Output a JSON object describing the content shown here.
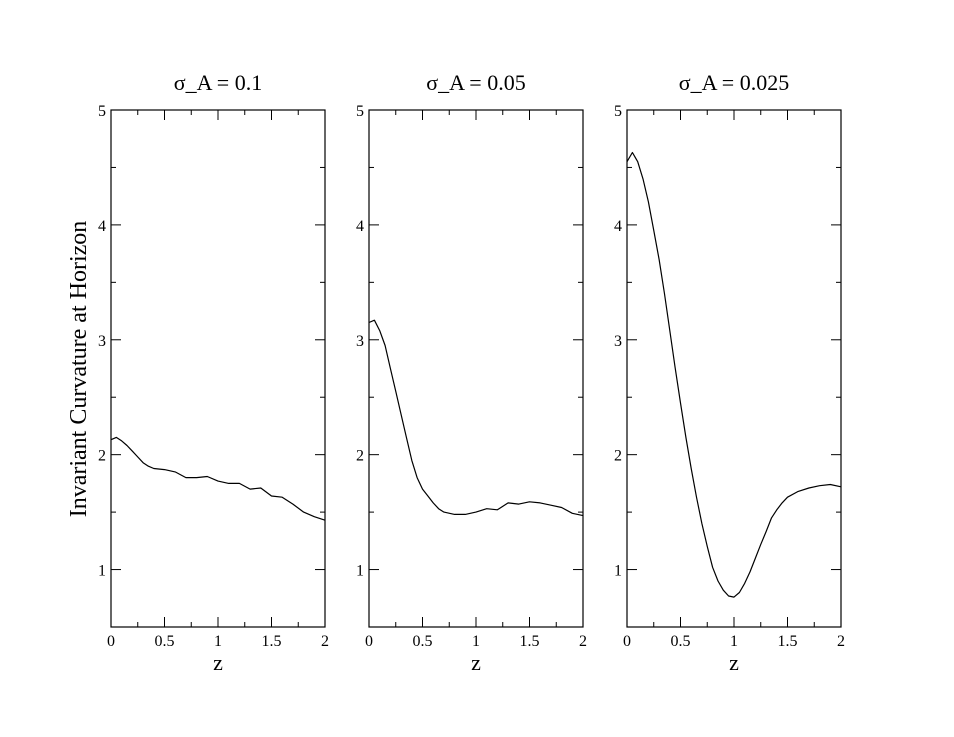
{
  "figure": {
    "ylabel": "Invariant Curvature at Horizon"
  },
  "chart_data": [
    {
      "type": "line",
      "title": "σ_A = 0.1",
      "xlabel": "z",
      "ylabel": "",
      "xlim": [
        0,
        2
      ],
      "ylim": [
        0.5,
        5
      ],
      "xticks": [
        0,
        0.5,
        1,
        1.5,
        2
      ],
      "xtick_labels": [
        "0",
        "0.5",
        "1",
        "1.5",
        "2"
      ],
      "yticks": [
        1,
        2,
        3,
        4,
        5
      ],
      "ytick_labels": [
        "1",
        "2",
        "3",
        "4",
        "5"
      ],
      "grid": false,
      "color": "#000000",
      "series": [
        {
          "x": [
            0,
            0.05,
            0.1,
            0.15,
            0.2,
            0.25,
            0.3,
            0.35,
            0.4,
            0.5,
            0.6,
            0.7,
            0.8,
            0.9,
            1.0,
            1.1,
            1.2,
            1.3,
            1.4,
            1.5,
            1.6,
            1.7,
            1.8,
            1.9,
            2.0
          ],
          "y": [
            2.13,
            2.15,
            2.12,
            2.08,
            2.03,
            1.98,
            1.93,
            1.9,
            1.88,
            1.87,
            1.85,
            1.8,
            1.8,
            1.81,
            1.77,
            1.75,
            1.75,
            1.7,
            1.71,
            1.64,
            1.63,
            1.57,
            1.5,
            1.46,
            1.43
          ]
        }
      ]
    },
    {
      "type": "line",
      "title": "σ_A = 0.05",
      "xlabel": "z",
      "ylabel": "",
      "xlim": [
        0,
        2
      ],
      "ylim": [
        0.5,
        5
      ],
      "xticks": [
        0,
        0.5,
        1,
        1.5,
        2
      ],
      "xtick_labels": [
        "0",
        "0.5",
        "1",
        "1.5",
        "2"
      ],
      "yticks": [
        1,
        2,
        3,
        4,
        5
      ],
      "ytick_labels": [
        "1",
        "2",
        "3",
        "4",
        "5"
      ],
      "grid": false,
      "color": "#000000",
      "series": [
        {
          "x": [
            0,
            0.05,
            0.1,
            0.15,
            0.2,
            0.25,
            0.3,
            0.35,
            0.4,
            0.45,
            0.5,
            0.55,
            0.6,
            0.65,
            0.7,
            0.8,
            0.9,
            1.0,
            1.1,
            1.2,
            1.3,
            1.4,
            1.5,
            1.6,
            1.7,
            1.8,
            1.9,
            2.0
          ],
          "y": [
            3.15,
            3.17,
            3.08,
            2.95,
            2.75,
            2.55,
            2.35,
            2.15,
            1.95,
            1.8,
            1.7,
            1.64,
            1.58,
            1.53,
            1.5,
            1.48,
            1.48,
            1.5,
            1.53,
            1.52,
            1.58,
            1.57,
            1.59,
            1.58,
            1.56,
            1.54,
            1.49,
            1.47
          ]
        }
      ]
    },
    {
      "type": "line",
      "title": "σ_A = 0.025",
      "xlabel": "z",
      "ylabel": "",
      "xlim": [
        0,
        2
      ],
      "ylim": [
        0.5,
        5
      ],
      "xticks": [
        0,
        0.5,
        1,
        1.5,
        2
      ],
      "xtick_labels": [
        "0",
        "0.5",
        "1",
        "1.5",
        "2"
      ],
      "yticks": [
        1,
        2,
        3,
        4,
        5
      ],
      "ytick_labels": [
        "1",
        "2",
        "3",
        "4",
        "5"
      ],
      "grid": false,
      "color": "#000000",
      "series": [
        {
          "x": [
            0,
            0.05,
            0.1,
            0.15,
            0.2,
            0.25,
            0.3,
            0.35,
            0.4,
            0.45,
            0.5,
            0.55,
            0.6,
            0.65,
            0.7,
            0.75,
            0.8,
            0.85,
            0.9,
            0.95,
            1.0,
            1.05,
            1.1,
            1.15,
            1.2,
            1.25,
            1.3,
            1.35,
            1.4,
            1.45,
            1.5,
            1.6,
            1.7,
            1.8,
            1.9,
            2.0
          ],
          "y": [
            4.55,
            4.63,
            4.55,
            4.4,
            4.2,
            3.95,
            3.7,
            3.4,
            3.08,
            2.76,
            2.45,
            2.15,
            1.88,
            1.63,
            1.4,
            1.2,
            1.02,
            0.9,
            0.82,
            0.77,
            0.76,
            0.8,
            0.88,
            0.98,
            1.1,
            1.22,
            1.33,
            1.45,
            1.52,
            1.58,
            1.63,
            1.68,
            1.71,
            1.73,
            1.74,
            1.72
          ]
        }
      ]
    }
  ]
}
